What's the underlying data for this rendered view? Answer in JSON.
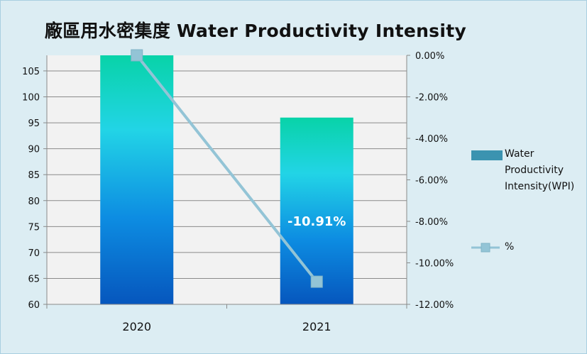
{
  "chart_data": {
    "type": "bar",
    "title": "廠區用水密集度 Water Productivity Intensity",
    "categories": [
      "2020",
      "2021"
    ],
    "series": [
      {
        "name": "Water Productivity Intensity(WPI)",
        "type": "bar",
        "axis": "left",
        "values": [
          108,
          96
        ]
      },
      {
        "name": "%",
        "type": "line",
        "axis": "right",
        "values": [
          0.0,
          -10.91
        ]
      }
    ],
    "y_left": {
      "min": 60,
      "max": 108,
      "ticks": [
        60,
        65,
        70,
        75,
        80,
        85,
        90,
        95,
        100,
        105
      ]
    },
    "y_right": {
      "min": -12,
      "max": 0,
      "ticks": [
        0,
        -2,
        -4,
        -6,
        -8,
        -10,
        -12
      ],
      "tick_labels": [
        "0.00%",
        "-2.00%",
        "-4.00%",
        "-6.00%",
        "-8.00%",
        "-10.00%",
        "-12.00%"
      ]
    },
    "data_labels": [
      {
        "category": "2021",
        "text": "-10.91%"
      }
    ],
    "legend_position": "right",
    "grid": true,
    "colors": {
      "bar_top": "#08d3a8",
      "bar_mid": "#22d4e6",
      "bar_low": "#0d8de2",
      "bar_bottom": "#0656bd",
      "line": "#93c4d6",
      "marker": "#93c4d6",
      "plot_bg": "#f2f2f2",
      "legend_bar": "#3b93b0"
    }
  }
}
